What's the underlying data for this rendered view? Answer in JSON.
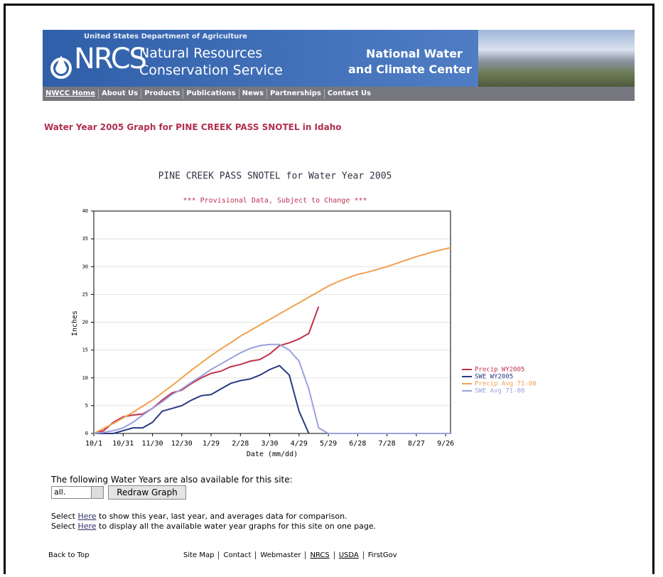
{
  "header": {
    "agency": "United States Department of Agriculture",
    "logo": "NRCS",
    "org_line1": "Natural Resources",
    "org_line2": "Conservation Service",
    "center_line1": "National Water",
    "center_line2": "and Climate Center"
  },
  "nav": [
    "NWCC Home",
    "About Us",
    "Products",
    "Publications",
    "News",
    "Partnerships",
    "Contact Us"
  ],
  "heading": "Water Year 2005 Graph for PINE CREEK PASS SNOTEL in Idaho",
  "chart_data": {
    "type": "line",
    "title": "PINE CREEK PASS SNOTEL for Water Year 2005",
    "subtitle": "*** Provisional Data, Subject to Change ***",
    "x_label": "Date (mm/dd)",
    "y_label": "Inches",
    "x": [
      0,
      10,
      20,
      30,
      40,
      50,
      60,
      70,
      80,
      90,
      100,
      110,
      120,
      130,
      140,
      150,
      160,
      170,
      180,
      190,
      200,
      210,
      220,
      230,
      240,
      250,
      260,
      270,
      280,
      290,
      300,
      310,
      320,
      330,
      340,
      350,
      360,
      365
    ],
    "xlim": [
      0,
      365
    ],
    "xticks": [
      {
        "value": 0,
        "label": "10/1"
      },
      {
        "value": 30,
        "label": "10/31"
      },
      {
        "value": 60,
        "label": "11/30"
      },
      {
        "value": 90,
        "label": "12/30"
      },
      {
        "value": 120,
        "label": "1/29"
      },
      {
        "value": 150,
        "label": "2/28"
      },
      {
        "value": 180,
        "label": "3/30"
      },
      {
        "value": 210,
        "label": "4/29"
      },
      {
        "value": 240,
        "label": "5/29"
      },
      {
        "value": 270,
        "label": "6/28"
      },
      {
        "value": 300,
        "label": "7/28"
      },
      {
        "value": 330,
        "label": "8/27"
      },
      {
        "value": 360,
        "label": "9/26"
      }
    ],
    "ylim": [
      0,
      40
    ],
    "yticks": [
      0,
      5,
      10,
      15,
      20,
      25,
      30,
      35,
      40
    ],
    "grid": true,
    "legend": "right",
    "series": [
      {
        "name": "Precip WY2005",
        "color": "#c0304a",
        "values": [
          0,
          0.5,
          2,
          3,
          3.3,
          3.5,
          4.5,
          6,
          7.3,
          7.8,
          9,
          10,
          10.8,
          11.2,
          12,
          12.4,
          13,
          13.3,
          14.3,
          15.8,
          16.3,
          17,
          18,
          22.8,
          null,
          null,
          null,
          null,
          null,
          null,
          null,
          null,
          null,
          null,
          null,
          null,
          null,
          null
        ]
      },
      {
        "name": "SWE WY2005",
        "color": "#2a3a80",
        "values": [
          0,
          0,
          0,
          0.5,
          1,
          1,
          2,
          4,
          4.5,
          5,
          6,
          6.8,
          7,
          8,
          9,
          9.5,
          9.8,
          10.5,
          11.5,
          12.2,
          10.5,
          4,
          0,
          null,
          null,
          null,
          null,
          null,
          null,
          null,
          null,
          null,
          null,
          null,
          null,
          null,
          null,
          null
        ]
      },
      {
        "name": "Precip Avg 71-00",
        "color": "#f0a050",
        "values": [
          0,
          0.9,
          1.8,
          2.8,
          3.8,
          4.9,
          6,
          7.3,
          8.6,
          10,
          11.4,
          12.7,
          14,
          15.2,
          16.3,
          17.5,
          18.5,
          19.5,
          20.5,
          21.5,
          22.5,
          23.5,
          24.5,
          25.5,
          26.5,
          27.3,
          28,
          28.6,
          29,
          29.5,
          30,
          30.6,
          31.2,
          31.8,
          32.3,
          32.8,
          33.2,
          33.4
        ]
      },
      {
        "name": "SWE Avg 71-00",
        "color": "#9aa0e0",
        "values": [
          0,
          0.2,
          0.5,
          1,
          2,
          3.3,
          4.5,
          5.7,
          7,
          8,
          9.2,
          10.3,
          11.5,
          12.5,
          13.5,
          14.5,
          15.3,
          15.8,
          16,
          16,
          15,
          13,
          8,
          1,
          0,
          0,
          0,
          0,
          0,
          0,
          0,
          0,
          0,
          0,
          0,
          0,
          0,
          0
        ]
      }
    ]
  },
  "form": {
    "prompt": "The following Water Years are also available for this site:",
    "select": "all.",
    "button": "Redraw Graph"
  },
  "links": [
    {
      "before": "Select ",
      "link": "Here",
      "after": " to show this year, last year, and averages data for comparison."
    },
    {
      "before": "Select ",
      "link": "Here",
      "after": " to display all the available water year graphs for this site on one page."
    }
  ],
  "footer": {
    "back": "Back to Top",
    "links": [
      "Site Map",
      "Contact",
      "Webmaster",
      "NRCS",
      "USDA",
      "FirstGov"
    ]
  }
}
